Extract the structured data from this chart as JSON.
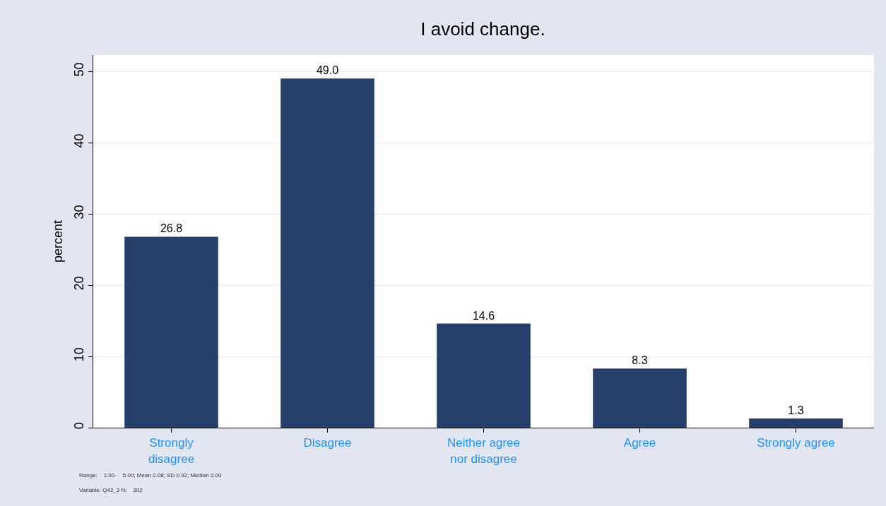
{
  "chart_data": {
    "type": "bar",
    "title": "I avoid change.",
    "ylabel": "percent",
    "categories": [
      "Strongly\ndisagree",
      "Disagree",
      "Neither agree\nnor disagree",
      "Agree",
      "Strongly agree"
    ],
    "values": [
      26.8,
      49.0,
      14.6,
      8.3,
      1.3
    ],
    "value_labels": [
      "26.8",
      "49.0",
      "14.6",
      "8.3",
      "1.3"
    ],
    "color": "#263f6a",
    "ylim": [
      0,
      52.3
    ],
    "yticks": [
      0,
      10,
      20,
      30,
      40,
      50
    ],
    "grid": "y",
    "legend": false,
    "annotations": [
      "Range:    1.00-    5.00; Mean 2.08; SD 0.92; Median 2.00",
      "Variable: Q42_3 N:    302"
    ]
  }
}
